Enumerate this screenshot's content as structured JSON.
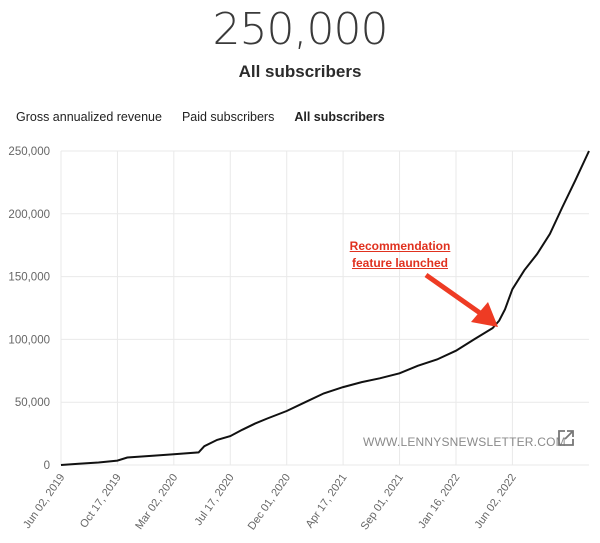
{
  "header": {
    "big_number": "250,000",
    "subtitle": "All subscribers"
  },
  "tabs": [
    {
      "label": "Gross annualized revenue",
      "active": false
    },
    {
      "label": "Paid subscribers",
      "active": false
    },
    {
      "label": "All subscribers",
      "active": true
    }
  ],
  "watermark": "WWW.LENNYSNEWSLETTER.COM",
  "annotation": {
    "line1": "Recommendation",
    "line2": "feature launched"
  },
  "colors": {
    "line": "#111111",
    "arrow": "#ee3b24",
    "grid": "#e9e9e9",
    "annotation": "#e0311f"
  },
  "chart_data": {
    "type": "line",
    "title": "",
    "xlabel": "",
    "ylabel": "",
    "ylim": [
      0,
      250000
    ],
    "yticks": [
      0,
      50000,
      100000,
      150000,
      200000,
      250000
    ],
    "ytick_labels": [
      "0",
      "50,000",
      "100,000",
      "150,000",
      "200,000",
      "250,000"
    ],
    "xticks": [
      "2019-06-02",
      "2019-10-17",
      "2020-03-02",
      "2020-07-17",
      "2020-12-01",
      "2021-04-17",
      "2021-09-01",
      "2022-01-16",
      "2022-06-02"
    ],
    "xtick_labels": [
      "Jun 02, 2019",
      "Oct 17, 2019",
      "Mar 02, 2020",
      "Jul 17, 2020",
      "Dec 01, 2020",
      "Apr 17, 2021",
      "Sep 01, 2021",
      "Jan 16, 2022",
      "Jun 02, 2022"
    ],
    "xlim": [
      "2019-06-02",
      "2022-12-05"
    ],
    "grid": true,
    "legend": "none",
    "series": [
      {
        "x": [
          "2019-06-02",
          "2019-07-15",
          "2019-09-01",
          "2019-10-17",
          "2019-11-10",
          "2020-01-15",
          "2020-03-02",
          "2020-05-01",
          "2020-05-15",
          "2020-06-15",
          "2020-07-17",
          "2020-08-15",
          "2020-09-15",
          "2020-10-15",
          "2020-12-01",
          "2021-01-15",
          "2021-03-01",
          "2021-04-17",
          "2021-06-01",
          "2021-07-15",
          "2021-09-01",
          "2021-10-15",
          "2021-12-01",
          "2022-01-16",
          "2022-03-01",
          "2022-04-15",
          "2022-05-01",
          "2022-05-15",
          "2022-06-02",
          "2022-07-01",
          "2022-08-01",
          "2022-09-01",
          "2022-10-01",
          "2022-11-01",
          "2022-12-05"
        ],
        "y": [
          0,
          1000,
          2000,
          3500,
          6000,
          7500,
          8500,
          10000,
          15000,
          20000,
          23000,
          28000,
          33000,
          37000,
          43000,
          50000,
          57000,
          62000,
          66000,
          69000,
          73000,
          79000,
          84000,
          91000,
          100000,
          109000,
          115000,
          124000,
          140000,
          155000,
          168000,
          184000,
          205000,
          226000,
          250000
        ]
      }
    ]
  }
}
